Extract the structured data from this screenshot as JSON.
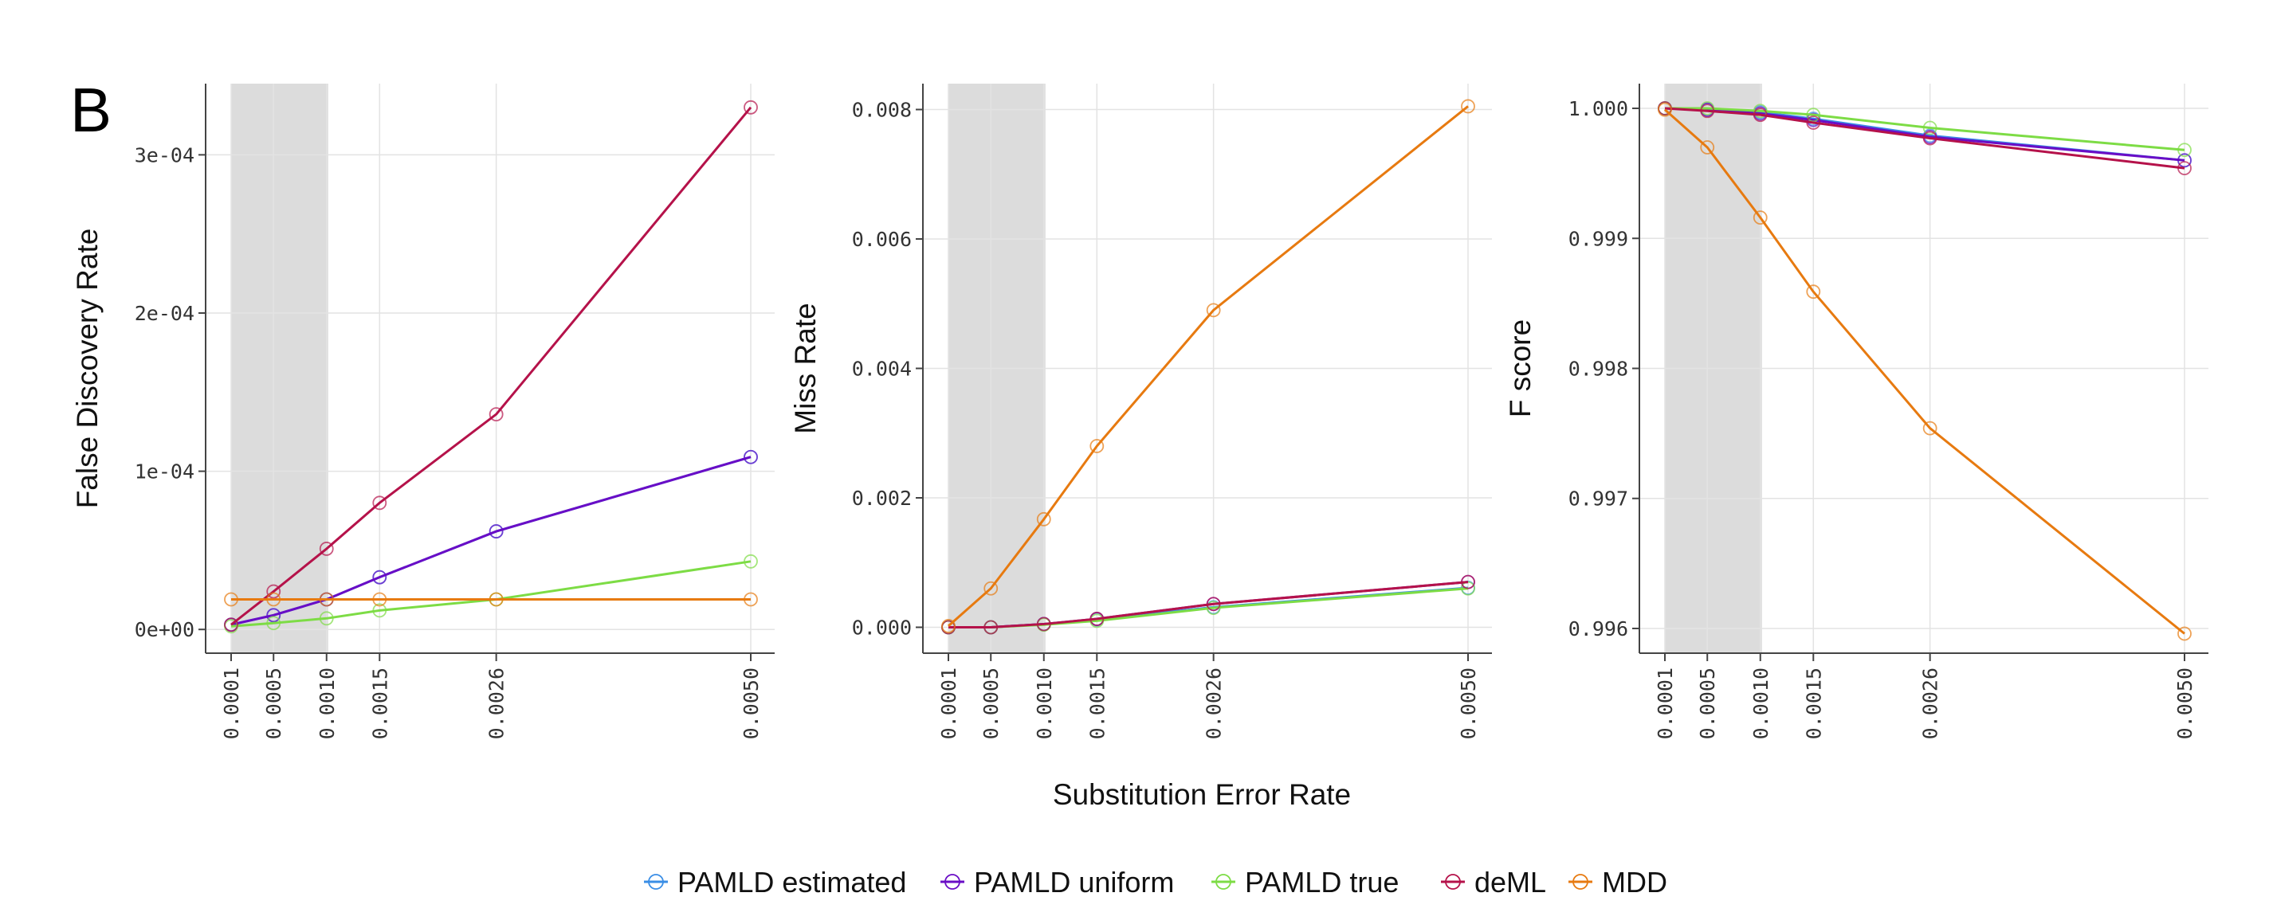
{
  "panel_label": "B",
  "shared_xlabel": "Substitution Error Rate",
  "highlight_range": [
    0.0001,
    0.001
  ],
  "colors": {
    "PAMLD estimated": "#3a8ee6",
    "PAMLD uniform": "#6a0dc6",
    "PAMLD true": "#7ddc45",
    "deML": "#b5124a",
    "MDD": "#e77a10",
    "shade": "#dcdcdc",
    "grid": "#e3e3e3",
    "axis": "#444444"
  },
  "legend": [
    "PAMLD estimated",
    "PAMLD uniform",
    "PAMLD true",
    "deML",
    "MDD"
  ],
  "chart_data": [
    {
      "type": "line",
      "ylabel": "False Discovery Rate",
      "x": [
        0.0001,
        0.0005,
        0.001,
        0.0015,
        0.0026,
        0.005
      ],
      "x_tick_labels": [
        "0.0001",
        "0.0005",
        "0.0010",
        "0.0015",
        "0.0026",
        "0.0050"
      ],
      "ylim": [
        -1.5e-05,
        0.000345
      ],
      "y_ticks": [
        0,
        0.0001,
        0.0002,
        0.0003
      ],
      "y_tick_labels": [
        "0e+00",
        "1e-04",
        "2e-04",
        "3e-04"
      ],
      "grid": true,
      "series": [
        {
          "name": "PAMLD estimated",
          "values": [
            3e-06,
            9e-06,
            1.9e-05,
            3.3e-05,
            6.2e-05,
            0.000109
          ]
        },
        {
          "name": "PAMLD uniform",
          "values": [
            3e-06,
            9e-06,
            1.9e-05,
            3.3e-05,
            6.2e-05,
            0.000109
          ]
        },
        {
          "name": "PAMLD true",
          "values": [
            2e-06,
            4e-06,
            7e-06,
            1.2e-05,
            1.9e-05,
            4.3e-05
          ]
        },
        {
          "name": "deML",
          "values": [
            3e-06,
            2.4e-05,
            5.1e-05,
            8e-05,
            0.000136,
            0.00033
          ]
        },
        {
          "name": "MDD",
          "values": [
            1.9e-05,
            1.9e-05,
            1.9e-05,
            1.9e-05,
            1.9e-05,
            1.9e-05
          ]
        }
      ]
    },
    {
      "type": "line",
      "ylabel": "Miss Rate",
      "x": [
        0.0001,
        0.0005,
        0.001,
        0.0015,
        0.0026,
        0.005
      ],
      "x_tick_labels": [
        "0.0001",
        "0.0005",
        "0.0010",
        "0.0015",
        "0.0026",
        "0.0050"
      ],
      "ylim": [
        -0.0004,
        0.0084
      ],
      "y_ticks": [
        0,
        0.002,
        0.004,
        0.006,
        0.008
      ],
      "y_tick_labels": [
        "0.000",
        "0.002",
        "0.004",
        "0.006",
        "0.008"
      ],
      "grid": true,
      "series": [
        {
          "name": "PAMLD estimated",
          "values": [
            0.0,
            0.0,
            5e-05,
            0.00012,
            0.00031,
            0.00061
          ]
        },
        {
          "name": "PAMLD uniform",
          "values": [
            0.0,
            0.0,
            5e-05,
            0.00013,
            0.00036,
            0.0007
          ]
        },
        {
          "name": "PAMLD true",
          "values": [
            0.0,
            0.0,
            4e-05,
            0.0001,
            0.0003,
            0.0006
          ]
        },
        {
          "name": "deML",
          "values": [
            0.0,
            0.0,
            5e-05,
            0.00013,
            0.00036,
            0.0007
          ]
        },
        {
          "name": "MDD",
          "values": [
            2e-05,
            0.0006,
            0.00167,
            0.0028,
            0.0049,
            0.00805
          ]
        }
      ]
    },
    {
      "type": "line",
      "ylabel": "F score",
      "x": [
        0.0001,
        0.0005,
        0.001,
        0.0015,
        0.0026,
        0.005
      ],
      "x_tick_labels": [
        "0.0001",
        "0.0005",
        "0.0010",
        "0.0015",
        "0.0026",
        "0.0050"
      ],
      "ylim": [
        0.99581,
        1.00019
      ],
      "y_ticks": [
        0.996,
        0.997,
        0.998,
        0.999,
        1.0
      ],
      "y_tick_labels": [
        "0.996",
        "0.997",
        "0.998",
        "0.999",
        "1.000"
      ],
      "grid": true,
      "series": [
        {
          "name": "PAMLD estimated",
          "values": [
            1.0,
            0.99999,
            0.99997,
            0.99992,
            0.99979,
            0.9996
          ]
        },
        {
          "name": "PAMLD uniform",
          "values": [
            1.0,
            0.99999,
            0.99996,
            0.99991,
            0.99978,
            0.9996
          ]
        },
        {
          "name": "PAMLD true",
          "values": [
            1.0,
            1.0,
            0.99998,
            0.99995,
            0.99985,
            0.99968
          ]
        },
        {
          "name": "deML",
          "values": [
            1.0,
            0.99998,
            0.99995,
            0.99989,
            0.99977,
            0.99954
          ]
        },
        {
          "name": "MDD",
          "values": [
            0.99999,
            0.9997,
            0.99916,
            0.99859,
            0.99754,
            0.99596
          ]
        }
      ]
    }
  ]
}
